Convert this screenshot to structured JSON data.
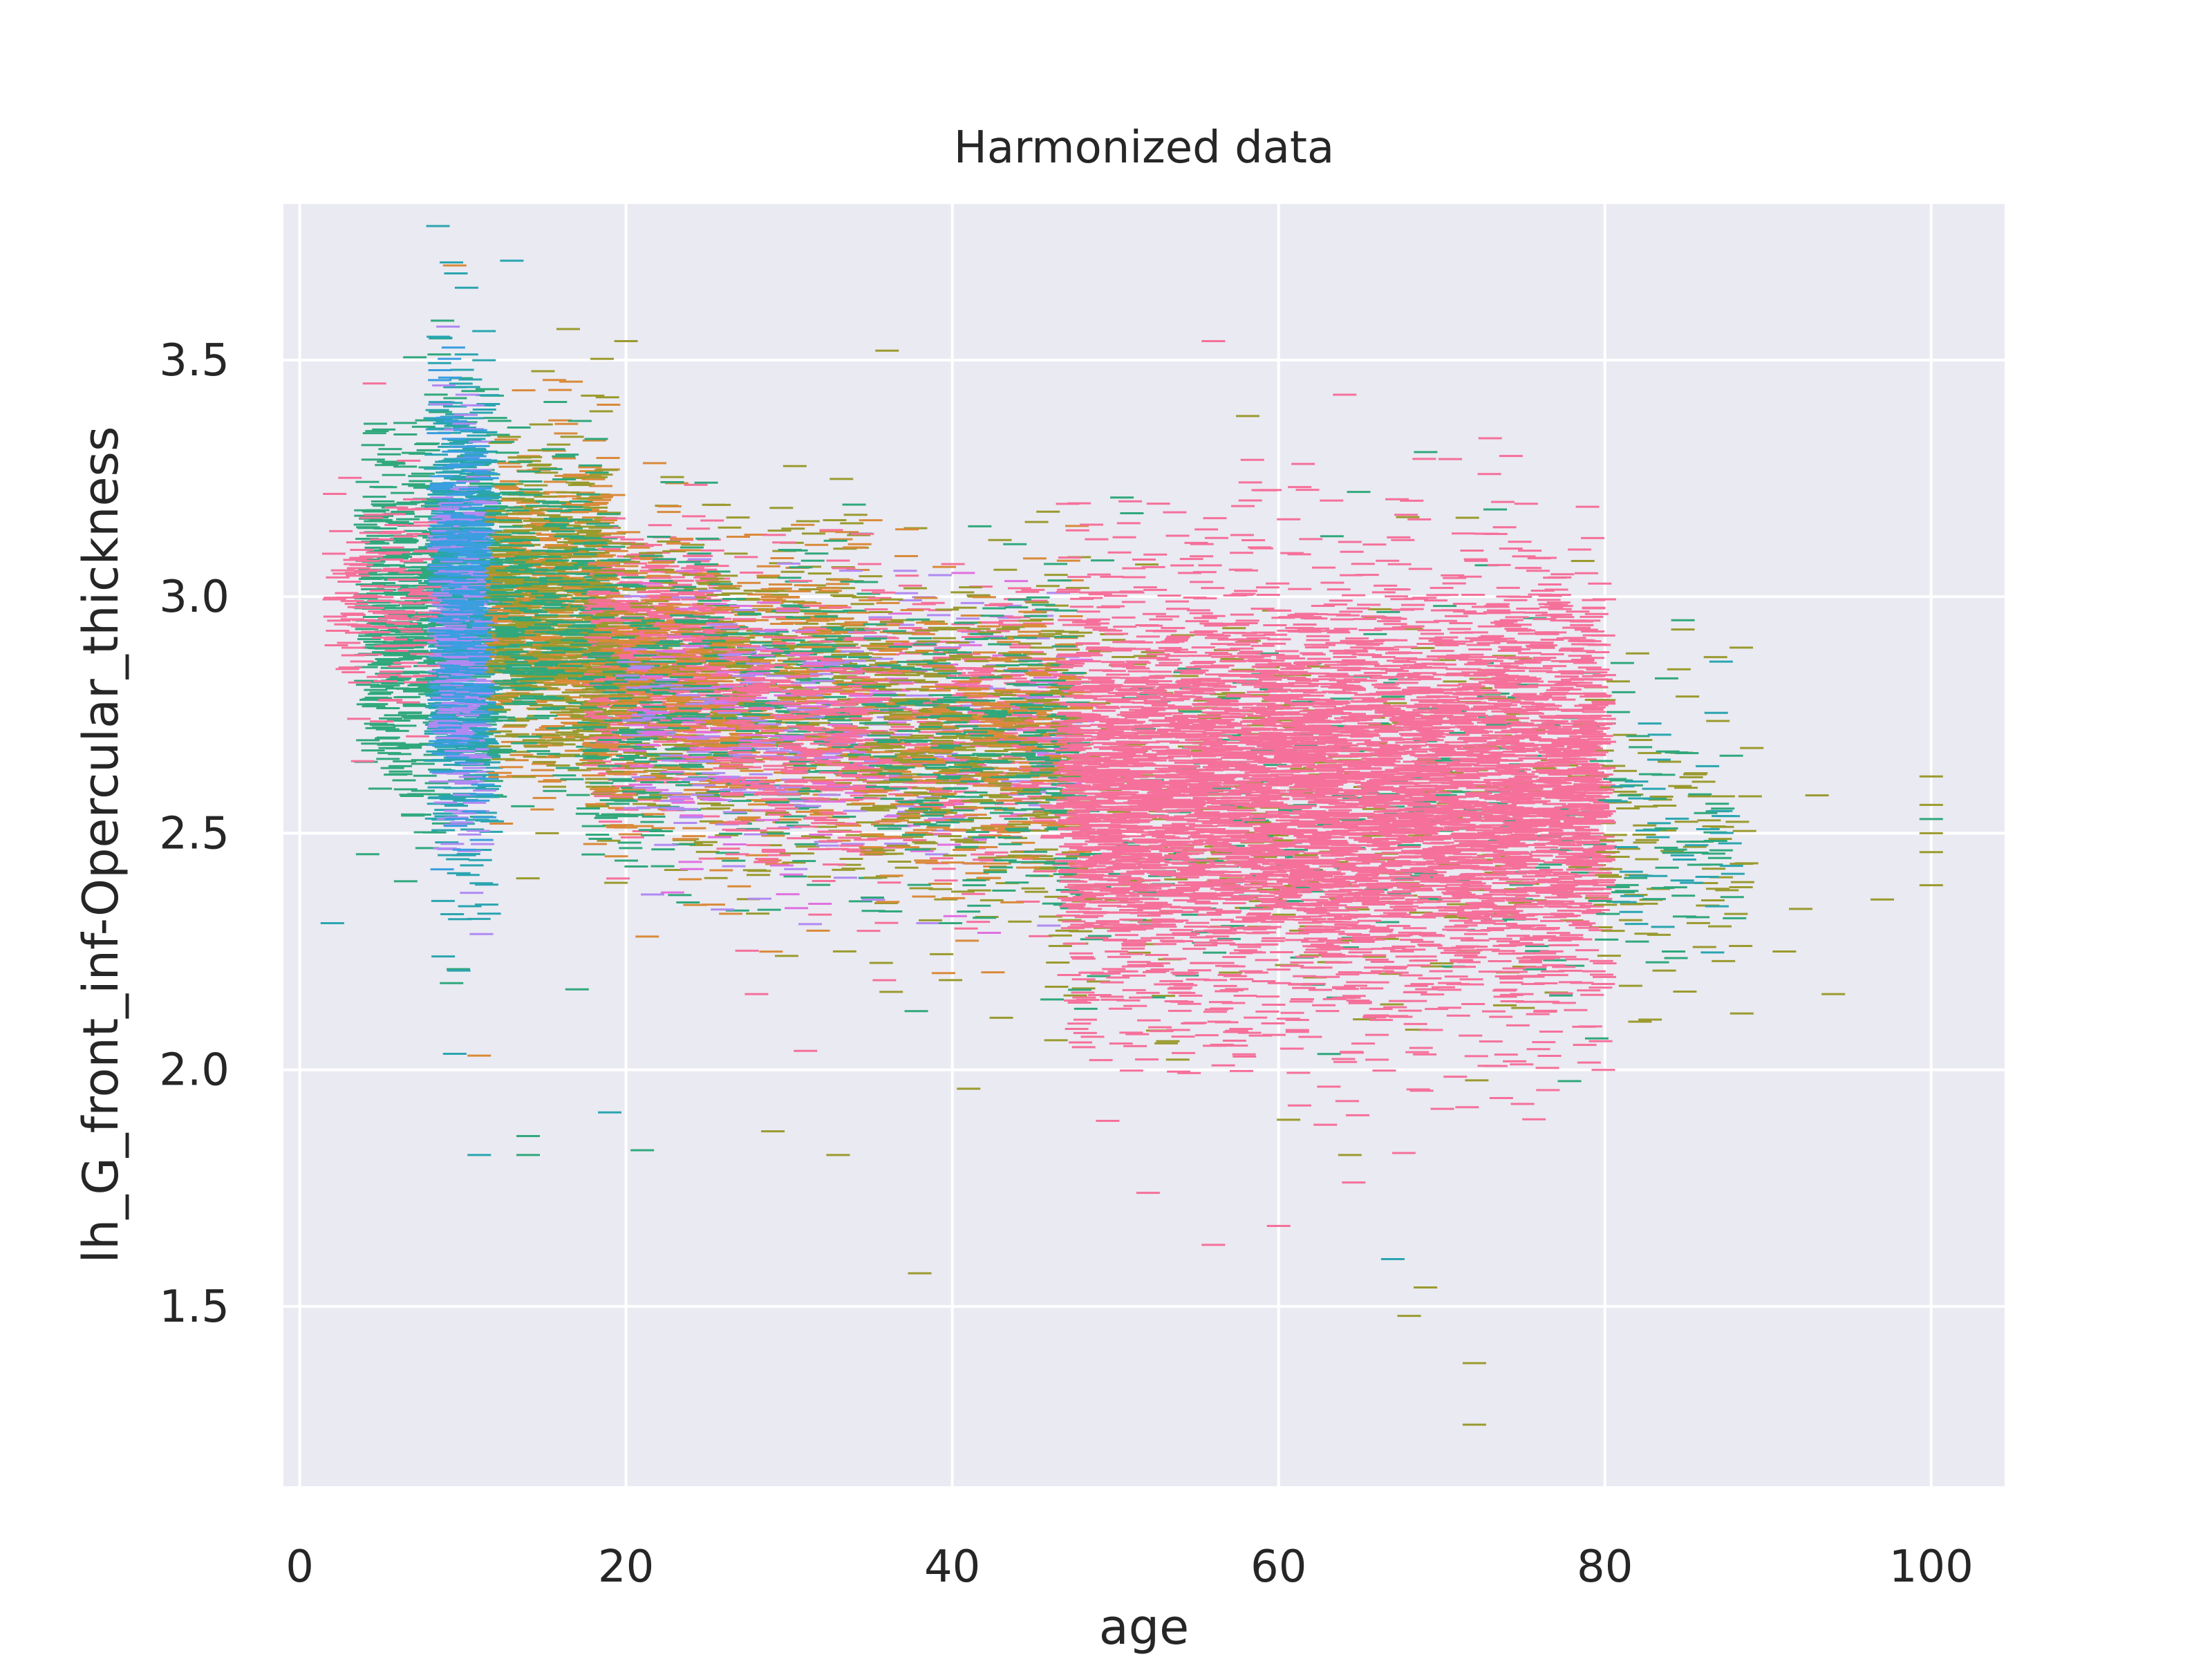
{
  "chart_data": {
    "type": "scatter",
    "title": "Harmonized data",
    "xlabel": "age",
    "ylabel": "lh_G_front_inf-Opercular_thickness",
    "xlim": [
      -1,
      104.5
    ],
    "ylim": [
      1.12,
      3.83
    ],
    "xticks": [
      0,
      20,
      40,
      60,
      80,
      100
    ],
    "yticks": [
      1.5,
      2.0,
      2.5,
      3.0,
      3.5
    ],
    "xtick_labels": [
      "0",
      "20",
      "40",
      "60",
      "80",
      "100"
    ],
    "ytick_labels": [
      "1.5",
      "2.0",
      "2.5",
      "3.0",
      "3.5"
    ],
    "grid": true,
    "legend": "none",
    "marker": "horizontal-line",
    "colors": {
      "background": "#eaeaf2",
      "grid": "#ffffff",
      "pink": "#f5709a",
      "green": "#30a87c",
      "teal": "#2aa5b0",
      "olive": "#9a9a2f",
      "orange": "#d98a3a",
      "purple": "#b08af2",
      "blue": "#3a9ee0",
      "magenta": "#e070e0"
    },
    "clusters": [
      {
        "color": "green",
        "x_range": [
          4,
          12
        ],
        "y_mean": 2.98,
        "y_sd": 0.19,
        "count": 800
      },
      {
        "color": "teal",
        "x_range": [
          8.3,
          11.8
        ],
        "y_mean": 2.96,
        "y_sd": 0.24,
        "count": 700
      },
      {
        "color": "purple",
        "x_range": [
          8.5,
          11.5
        ],
        "y_mean": 2.93,
        "y_sd": 0.2,
        "count": 300
      },
      {
        "color": "blue",
        "x_range": [
          8.5,
          11.5
        ],
        "y_mean": 3.0,
        "y_sd": 0.2,
        "count": 250
      },
      {
        "color": "pink",
        "x_range": [
          2,
          8
        ],
        "y_mean": 3.0,
        "y_sd": 0.12,
        "count": 150
      },
      {
        "color": "orange",
        "x_range": [
          12,
          19
        ],
        "y_mean": 2.97,
        "y_sd": 0.17,
        "count": 500
      },
      {
        "color": "olive",
        "x_range": [
          12,
          19
        ],
        "y_mean": 2.95,
        "y_sd": 0.17,
        "count": 500
      },
      {
        "color": "green",
        "x_range": [
          12,
          19
        ],
        "y_mean": 2.97,
        "y_sd": 0.17,
        "count": 300
      },
      {
        "color": "pink",
        "x_range": [
          18,
          26
        ],
        "y_mean": 2.85,
        "y_sd": 0.13,
        "count": 700
      },
      {
        "color": "olive",
        "x_range": [
          18,
          35
        ],
        "y_mean": 2.8,
        "y_sd": 0.17,
        "count": 600
      },
      {
        "color": "orange",
        "x_range": [
          18,
          35
        ],
        "y_mean": 2.78,
        "y_sd": 0.17,
        "count": 500
      },
      {
        "color": "green",
        "x_range": [
          18,
          35
        ],
        "y_mean": 2.78,
        "y_sd": 0.17,
        "count": 400
      },
      {
        "color": "purple",
        "x_range": [
          20,
          48
        ],
        "y_mean": 2.72,
        "y_sd": 0.14,
        "count": 300
      },
      {
        "color": "magenta",
        "x_range": [
          20,
          48
        ],
        "y_mean": 2.72,
        "y_sd": 0.14,
        "count": 200
      },
      {
        "color": "pink",
        "x_range": [
          26,
          47
        ],
        "y_mean": 2.72,
        "y_sd": 0.15,
        "count": 700
      },
      {
        "color": "olive",
        "x_range": [
          35,
          48
        ],
        "y_mean": 2.68,
        "y_sd": 0.17,
        "count": 400
      },
      {
        "color": "orange",
        "x_range": [
          35,
          48
        ],
        "y_mean": 2.68,
        "y_sd": 0.17,
        "count": 250
      },
      {
        "color": "green",
        "x_range": [
          35,
          48
        ],
        "y_mean": 2.68,
        "y_sd": 0.17,
        "count": 250
      },
      {
        "color": "olive",
        "x_range": [
          46,
          80
        ],
        "y_mean": 2.55,
        "y_sd": 0.22,
        "count": 400
      },
      {
        "color": "green",
        "x_range": [
          46,
          80
        ],
        "y_mean": 2.55,
        "y_sd": 0.2,
        "count": 300
      },
      {
        "color": "pink",
        "x_range": [
          47,
          80
        ],
        "y_mean": 2.58,
        "y_sd": 0.22,
        "count": 5200
      },
      {
        "color": "olive",
        "x_range": [
          80,
          89
        ],
        "y_mean": 2.5,
        "y_sd": 0.17,
        "count": 90
      },
      {
        "color": "green",
        "x_range": [
          80,
          88
        ],
        "y_mean": 2.52,
        "y_sd": 0.15,
        "count": 60
      },
      {
        "color": "teal",
        "x_range": [
          80,
          88
        ],
        "y_mean": 2.5,
        "y_sd": 0.15,
        "count": 40
      }
    ],
    "points": [
      {
        "x": 9.5,
        "y": 3.7,
        "color": "orange"
      },
      {
        "x": 13,
        "y": 3.71,
        "color": "teal"
      },
      {
        "x": 36,
        "y": 3.52,
        "color": "olive"
      },
      {
        "x": 56,
        "y": 3.54,
        "color": "pink"
      },
      {
        "x": 20,
        "y": 3.54,
        "color": "olive"
      },
      {
        "x": 2,
        "y": 2.31,
        "color": "teal"
      },
      {
        "x": 11,
        "y": 1.82,
        "color": "teal"
      },
      {
        "x": 14,
        "y": 1.86,
        "color": "green"
      },
      {
        "x": 14,
        "y": 1.82,
        "color": "green"
      },
      {
        "x": 19,
        "y": 1.91,
        "color": "teal"
      },
      {
        "x": 21,
        "y": 1.83,
        "color": "green"
      },
      {
        "x": 29,
        "y": 1.87,
        "color": "olive"
      },
      {
        "x": 33,
        "y": 1.82,
        "color": "olive"
      },
      {
        "x": 38,
        "y": 1.57,
        "color": "olive"
      },
      {
        "x": 52,
        "y": 1.74,
        "color": "pink"
      },
      {
        "x": 56,
        "y": 1.63,
        "color": "pink"
      },
      {
        "x": 60,
        "y": 1.67,
        "color": "pink"
      },
      {
        "x": 67,
        "y": 1.6,
        "color": "teal"
      },
      {
        "x": 69,
        "y": 1.54,
        "color": "olive"
      },
      {
        "x": 68,
        "y": 1.48,
        "color": "olive"
      },
      {
        "x": 72,
        "y": 1.38,
        "color": "olive"
      },
      {
        "x": 72,
        "y": 1.25,
        "color": "olive"
      },
      {
        "x": 100,
        "y": 2.62,
        "color": "olive"
      },
      {
        "x": 100,
        "y": 2.56,
        "color": "olive"
      },
      {
        "x": 100,
        "y": 2.53,
        "color": "green"
      },
      {
        "x": 100,
        "y": 2.5,
        "color": "olive"
      },
      {
        "x": 100,
        "y": 2.46,
        "color": "olive"
      },
      {
        "x": 100,
        "y": 2.39,
        "color": "olive"
      },
      {
        "x": 97,
        "y": 2.36,
        "color": "olive"
      },
      {
        "x": 93,
        "y": 2.58,
        "color": "olive"
      },
      {
        "x": 94,
        "y": 2.16,
        "color": "olive"
      },
      {
        "x": 92,
        "y": 2.34,
        "color": "olive"
      },
      {
        "x": 91,
        "y": 2.25,
        "color": "olive"
      },
      {
        "x": 89,
        "y": 2.68,
        "color": "olive"
      },
      {
        "x": 82,
        "y": 2.88,
        "color": "olive"
      },
      {
        "x": 11,
        "y": 2.03,
        "color": "orange"
      },
      {
        "x": 17,
        "y": 2.17,
        "color": "green"
      },
      {
        "x": 28,
        "y": 2.16,
        "color": "pink"
      },
      {
        "x": 31,
        "y": 2.04,
        "color": "pink"
      },
      {
        "x": 43,
        "y": 2.11,
        "color": "olive"
      },
      {
        "x": 41,
        "y": 1.96,
        "color": "olive"
      }
    ]
  }
}
